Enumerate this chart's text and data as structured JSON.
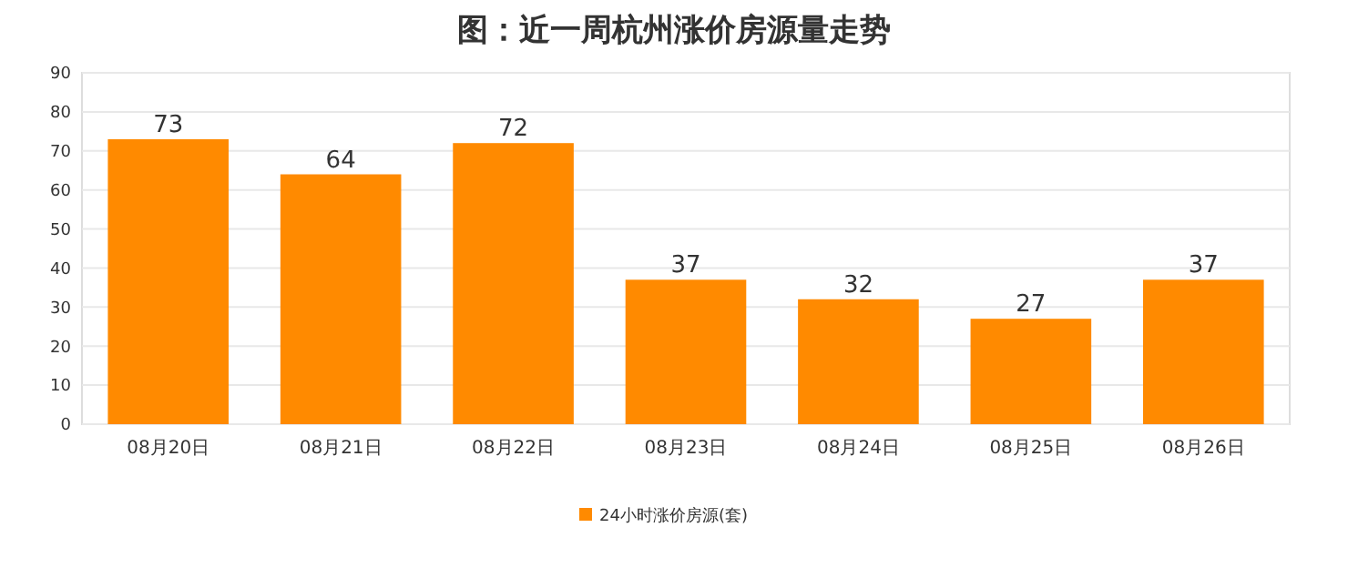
{
  "chart_data": {
    "type": "bar",
    "title": "图：近一周杭州涨价房源量走势",
    "categories": [
      "08月20日",
      "08月21日",
      "08月22日",
      "08月23日",
      "08月24日",
      "08月25日",
      "08月26日"
    ],
    "series": [
      {
        "name": "24小时涨价房源(套)",
        "color": "#ff8a00",
        "values": [
          73,
          64,
          72,
          37,
          32,
          27,
          37
        ]
      }
    ],
    "ylim": [
      0,
      90
    ],
    "yticks": [
      0,
      10,
      20,
      30,
      40,
      50,
      60,
      70,
      80,
      90
    ],
    "grid": "y",
    "legend": "bottom",
    "data_labels": true
  }
}
